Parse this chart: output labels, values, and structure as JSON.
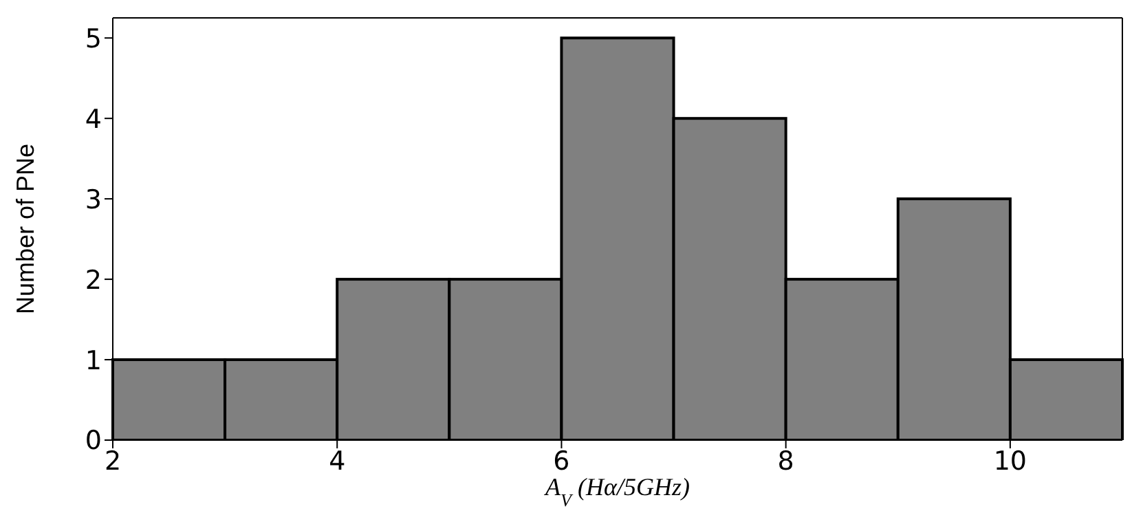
{
  "chart_data": {
    "type": "histogram",
    "xlabel": "A$_{V}$ (Hα/5GHz)",
    "ylabel": "Number of PNe",
    "bins": [
      2,
      3,
      4,
      5,
      6,
      7,
      8,
      9,
      10,
      11
    ],
    "values": [
      1,
      1,
      2,
      2,
      5,
      4,
      2,
      3,
      1
    ],
    "color": "#808080",
    "xlim": [
      2,
      11
    ],
    "xticks": [
      2,
      4,
      6,
      8,
      10
    ],
    "ylim": [
      0,
      5.25
    ],
    "yticks": [
      0,
      1,
      2,
      3,
      4,
      5
    ],
    "grid": false,
    "legend": false
  }
}
